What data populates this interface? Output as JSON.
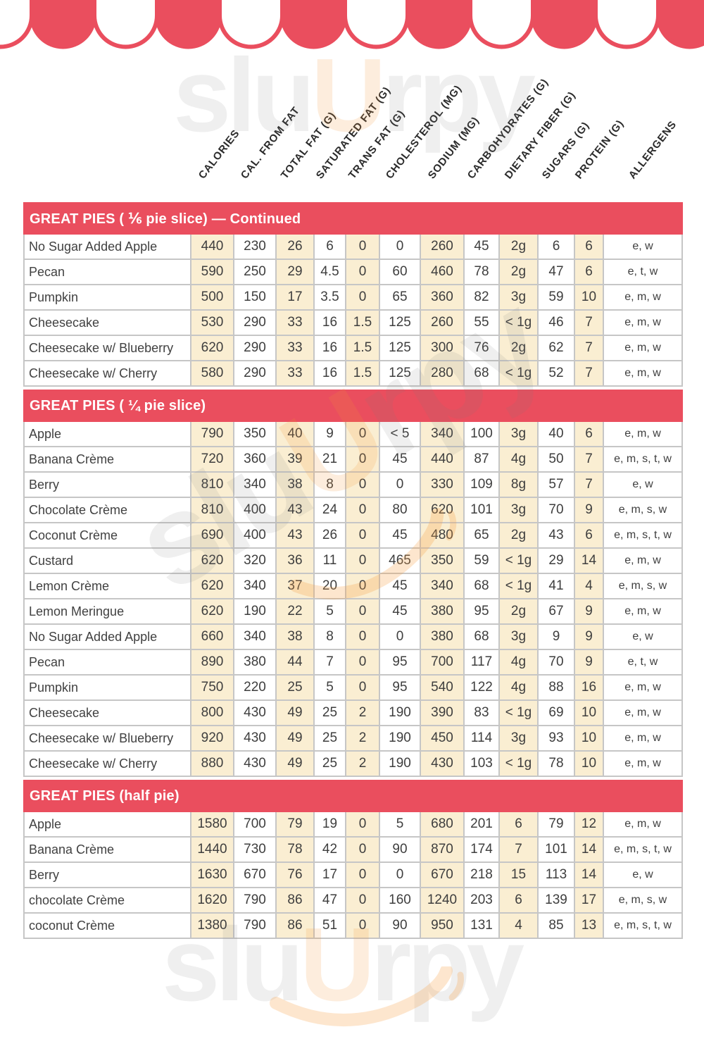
{
  "colors": {
    "red": "#ea4e5e",
    "cream": "#faeed2",
    "border": "#c6c6c6",
    "text": "#3e3e3e"
  },
  "columns": [
    "CALORIES",
    "CAL. FROM FAT",
    "TOTAL FAT (G)",
    "SATURATED FAT (G)",
    "TRANS FAT (G)",
    "CHOLESTEROL (MG)",
    "SODIUM (MG)",
    "CARBOHYDRATES (G)",
    "DIETARY FIBER (G)",
    "SUGARS (G)",
    "PROTEIN (G)",
    "ALLERGENS"
  ],
  "sections": [
    {
      "title": "GREAT PIES ( ⅙ pie slice) — Continued",
      "rows": [
        {
          "name": "No Sugar Added Apple",
          "values": [
            "440",
            "230",
            "26",
            "6",
            "0",
            "0",
            "260",
            "45",
            "2g",
            "6",
            "6",
            "e, w"
          ]
        },
        {
          "name": "Pecan",
          "values": [
            "590",
            "250",
            "29",
            "4.5",
            "0",
            "60",
            "460",
            "78",
            "2g",
            "47",
            "6",
            "e, t, w"
          ]
        },
        {
          "name": "Pumpkin",
          "values": [
            "500",
            "150",
            "17",
            "3.5",
            "0",
            "65",
            "360",
            "82",
            "3g",
            "59",
            "10",
            "e, m, w"
          ]
        },
        {
          "name": "Cheesecake",
          "values": [
            "530",
            "290",
            "33",
            "16",
            "1.5",
            "125",
            "260",
            "55",
            "< 1g",
            "46",
            "7",
            "e, m, w"
          ]
        },
        {
          "name": "Cheesecake w/ Blueberry",
          "values": [
            "620",
            "290",
            "33",
            "16",
            "1.5",
            "125",
            "300",
            "76",
            "2g",
            "62",
            "7",
            "e, m, w"
          ]
        },
        {
          "name": "Cheesecake w/ Cherry",
          "values": [
            "580",
            "290",
            "33",
            "16",
            "1.5",
            "125",
            "280",
            "68",
            "< 1g",
            "52",
            "7",
            "e, m, w"
          ]
        }
      ]
    },
    {
      "title": "GREAT PIES ( ¼ pie slice)",
      "rows": [
        {
          "name": "Apple",
          "values": [
            "790",
            "350",
            "40",
            "9",
            "0",
            "< 5",
            "340",
            "100",
            "3g",
            "40",
            "6",
            "e, m, w"
          ]
        },
        {
          "name": "Banana Crème",
          "values": [
            "720",
            "360",
            "39",
            "21",
            "0",
            "45",
            "440",
            "87",
            "4g",
            "50",
            "7",
            "e, m, s, t, w"
          ]
        },
        {
          "name": "Berry",
          "values": [
            "810",
            "340",
            "38",
            "8",
            "0",
            "0",
            "330",
            "109",
            "8g",
            "57",
            "7",
            "e, w"
          ]
        },
        {
          "name": "Chocolate Crème",
          "values": [
            "810",
            "400",
            "43",
            "24",
            "0",
            "80",
            "620",
            "101",
            "3g",
            "70",
            "9",
            "e, m, s, w"
          ]
        },
        {
          "name": "Coconut Crème",
          "values": [
            "690",
            "400",
            "43",
            "26",
            "0",
            "45",
            "480",
            "65",
            "2g",
            "43",
            "6",
            "e, m, s, t, w"
          ]
        },
        {
          "name": "Custard",
          "values": [
            "620",
            "320",
            "36",
            "11",
            "0",
            "465",
            "350",
            "59",
            "< 1g",
            "29",
            "14",
            "e, m, w"
          ]
        },
        {
          "name": "Lemon Crème",
          "values": [
            "620",
            "340",
            "37",
            "20",
            "0",
            "45",
            "340",
            "68",
            "< 1g",
            "41",
            "4",
            "e, m, s, w"
          ]
        },
        {
          "name": "Lemon Meringue",
          "values": [
            "620",
            "190",
            "22",
            "5",
            "0",
            "45",
            "380",
            "95",
            "2g",
            "67",
            "9",
            "e, m, w"
          ]
        },
        {
          "name": "No Sugar Added Apple",
          "values": [
            "660",
            "340",
            "38",
            "8",
            "0",
            "0",
            "380",
            "68",
            "3g",
            "9",
            "9",
            "e, w"
          ]
        },
        {
          "name": "Pecan",
          "values": [
            "890",
            "380",
            "44",
            "7",
            "0",
            "95",
            "700",
            "117",
            "4g",
            "70",
            "9",
            "e, t, w"
          ]
        },
        {
          "name": "Pumpkin",
          "values": [
            "750",
            "220",
            "25",
            "5",
            "0",
            "95",
            "540",
            "122",
            "4g",
            "88",
            "16",
            "e, m, w"
          ]
        },
        {
          "name": "Cheesecake",
          "values": [
            "800",
            "430",
            "49",
            "25",
            "2",
            "190",
            "390",
            "83",
            "< 1g",
            "69",
            "10",
            "e, m, w"
          ]
        },
        {
          "name": "Cheesecake w/ Blueberry",
          "values": [
            "920",
            "430",
            "49",
            "25",
            "2",
            "190",
            "450",
            "114",
            "3g",
            "93",
            "10",
            "e, m, w"
          ]
        },
        {
          "name": "Cheesecake w/ Cherry",
          "values": [
            "880",
            "430",
            "49",
            "25",
            "2",
            "190",
            "430",
            "103",
            "< 1g",
            "78",
            "10",
            "e, m, w"
          ]
        }
      ]
    },
    {
      "title": "GREAT PIES (half pie)",
      "rows": [
        {
          "name": "Apple",
          "values": [
            "1580",
            "700",
            "79",
            "19",
            "0",
            "5",
            "680",
            "201",
            "6",
            "79",
            "12",
            "e, m, w"
          ]
        },
        {
          "name": "Banana Crème",
          "values": [
            "1440",
            "730",
            "78",
            "42",
            "0",
            "90",
            "870",
            "174",
            "7",
            "101",
            "14",
            "e, m, s, t, w"
          ]
        },
        {
          "name": "Berry",
          "values": [
            "1630",
            "670",
            "76",
            "17",
            "0",
            "0",
            "670",
            "218",
            "15",
            "113",
            "14",
            "e, w"
          ]
        },
        {
          "name": "chocolate Crème",
          "values": [
            "1620",
            "790",
            "86",
            "47",
            "0",
            "160",
            "1240",
            "203",
            "6",
            "139",
            "17",
            "e, m, s, w"
          ]
        },
        {
          "name": "coconut Crème",
          "values": [
            "1380",
            "790",
            "86",
            "51",
            "0",
            "90",
            "950",
            "131",
            "4",
            "85",
            "13",
            "e, m, s, t, w"
          ]
        }
      ]
    }
  ],
  "watermark": {
    "part1": "slu",
    "part2": "U",
    "part3": "rpy"
  }
}
